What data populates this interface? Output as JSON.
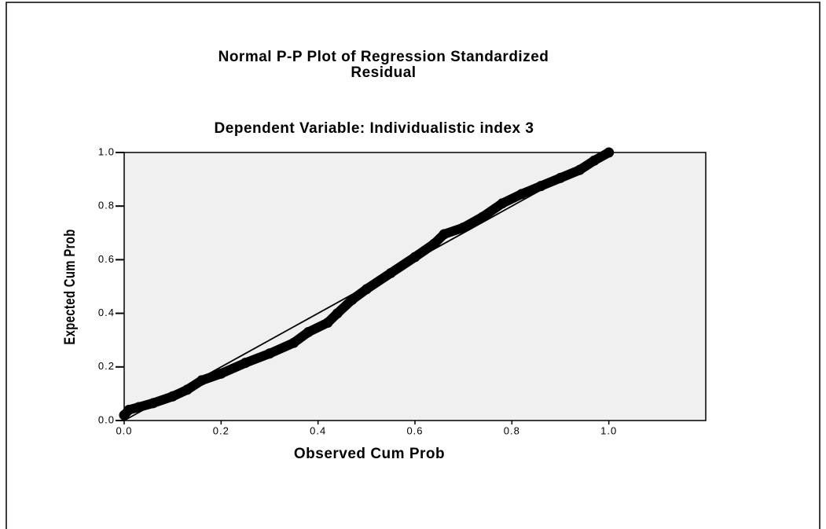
{
  "chart_data": {
    "type": "scatter",
    "title": [
      "Normal P-P Plot of Regression Standardized",
      "Residual"
    ],
    "subtitle": "Dependent Variable: Individualistic index 3",
    "xlabel": "Observed Cum Prob",
    "ylabel": "Expected Cum Prob",
    "color": "#000000",
    "background": "#f0f0f0",
    "xlim": [
      0,
      1.2
    ],
    "ylim": [
      0,
      1
    ],
    "xticks": [
      {
        "value": 0,
        "label": "0.0"
      },
      {
        "value": 0.2,
        "label": "0.2"
      },
      {
        "value": 0.4,
        "label": "0.4"
      },
      {
        "value": 0.6,
        "label": "0.6"
      },
      {
        "value": 0.8,
        "label": "0.8"
      },
      {
        "value": 1,
        "label": "1.0"
      }
    ],
    "yticks": [
      {
        "value": 0,
        "label": "0.0"
      },
      {
        "value": 0.2,
        "label": "0.2"
      },
      {
        "value": 0.4,
        "label": "0.4"
      },
      {
        "value": 0.6,
        "label": "0.6"
      },
      {
        "value": 0.8,
        "label": "0.8"
      },
      {
        "value": 1,
        "label": "1.0"
      }
    ],
    "x": [
      0,
      0.01,
      0.03,
      0.06,
      0.1,
      0.13,
      0.16,
      0.2,
      0.25,
      0.3,
      0.35,
      0.38,
      0.42,
      0.44,
      0.47,
      0.5,
      0.55,
      0.6,
      0.64,
      0.66,
      0.7,
      0.74,
      0.78,
      0.82,
      0.86,
      0.9,
      0.94,
      0.97,
      1.0
    ],
    "values": [
      0.02,
      0.04,
      0.05,
      0.065,
      0.09,
      0.115,
      0.15,
      0.175,
      0.215,
      0.25,
      0.29,
      0.33,
      0.365,
      0.4,
      0.45,
      0.49,
      0.55,
      0.61,
      0.66,
      0.695,
      0.72,
      0.76,
      0.81,
      0.845,
      0.875,
      0.905,
      0.935,
      0.97,
      1.0
    ],
    "reference_line": {
      "x": [
        0,
        1
      ],
      "y": [
        0,
        1
      ]
    }
  }
}
